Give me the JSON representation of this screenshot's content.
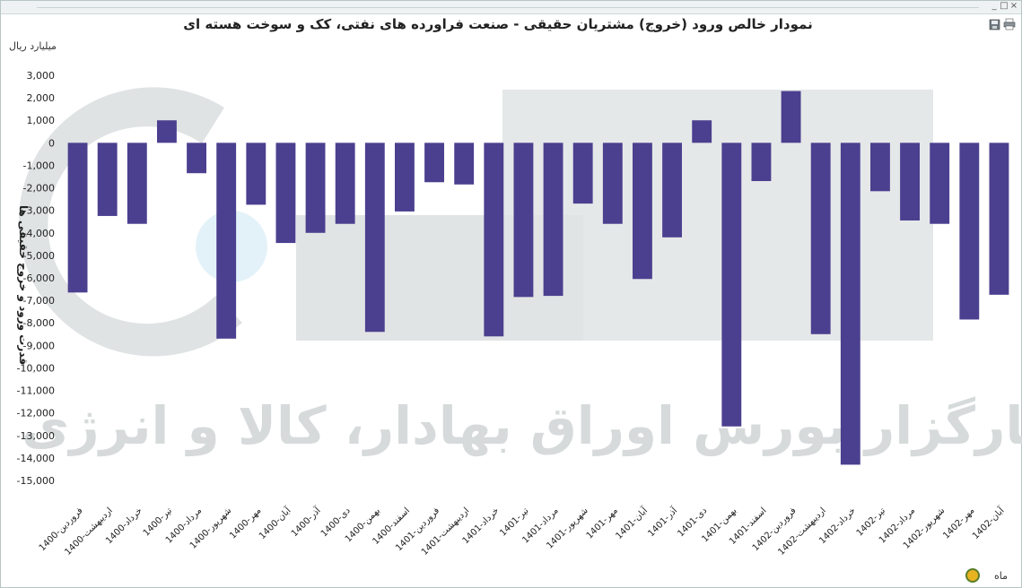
{
  "window": {
    "min_glyph": "_",
    "max_glyph": "□",
    "close_glyph": "×",
    "export_icon": "save-icon",
    "print_icon": "print-icon"
  },
  "watermark": {
    "text": "کارگزار بورس اوراق بهادار، کالا و انرژی",
    "color": "#d6dadb"
  },
  "footer": {
    "period_label": "ماه",
    "refresh_icon": "refresh-icon"
  },
  "colors": {
    "bar": "#4b3f8f"
  },
  "chart_data": {
    "type": "bar",
    "title": "نمودار خالص ورود (خروج) مشتریان حقیقی - صنعت فراورده های نفتی، کک و سوخت هسته ای",
    "unit": "میلیارد ریال",
    "ylabel": "قدرت ورود و خروج حقیقی ها",
    "xlabel": "",
    "ylim": [
      -15000,
      3000
    ],
    "yticks": [
      3000,
      2000,
      1000,
      0,
      -1000,
      -2000,
      -3000,
      -4000,
      -5000,
      -6000,
      -7000,
      -8000,
      -9000,
      -10000,
      -11000,
      -12000,
      -13000,
      -14000,
      -15000
    ],
    "ytick_labels": [
      "3,000",
      "2,000",
      "1,000",
      "0",
      "-1,000",
      "-2,000",
      "-3,000",
      "-4,000",
      "-5,000",
      "-6,000",
      "-7,000",
      "-8,000",
      "-9,000",
      "-10,000",
      "-11,000",
      "-12,000",
      "-13,000",
      "-14,000",
      "-15,000"
    ],
    "grid": false,
    "categories": [
      "1400-فروردین",
      "1400-اردیبهشت",
      "1400-خرداد",
      "1400-تیر",
      "1400-مرداد",
      "1400-شهریور",
      "1400-مهر",
      "1400-آبان",
      "1400-آذر",
      "1400-دی",
      "1400-بهمن",
      "1400-اسفند",
      "1401-فروردین",
      "1401-اردیبهشت",
      "1401-خرداد",
      "1401-تیر",
      "1401-مرداد",
      "1401-شهریور",
      "1401-مهر",
      "1401-آبان",
      "1401-آذر",
      "1401-دی",
      "1401-بهمن",
      "1401-اسفند",
      "1402-فروردین",
      "1402-اردیبهشت",
      "1402-خرداد",
      "1402-تیر",
      "1402-مرداد",
      "1402-شهریور",
      "1402-مهر",
      "1402-آبان"
    ],
    "values": [
      -6650,
      -3250,
      -3600,
      1000,
      -1350,
      -8700,
      -2750,
      -4450,
      -4000,
      -3600,
      -8400,
      -3050,
      -1750,
      -1850,
      -8600,
      -6850,
      -6800,
      -2700,
      -3600,
      -6050,
      -4200,
      1000,
      -12600,
      -1700,
      2300,
      -8500,
      -14300,
      -2150,
      -3450,
      -3600,
      -7850,
      -6750
    ]
  }
}
